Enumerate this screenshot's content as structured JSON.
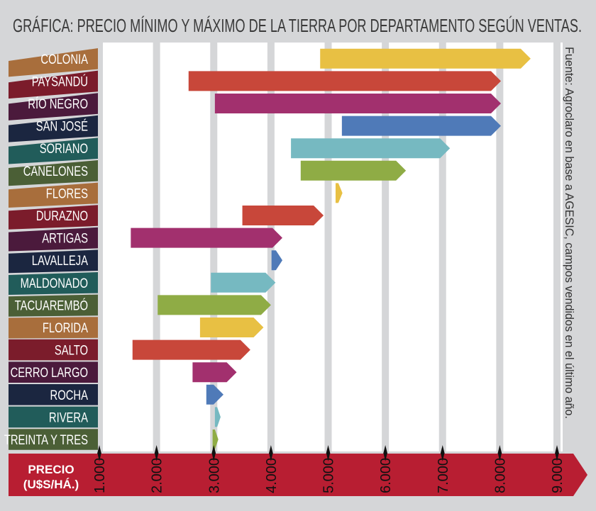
{
  "chart_data": {
    "type": "bar",
    "orientation": "horizontal-floating",
    "title": "GRÁFICA: PRECIO MÍNIMO Y MÁXIMO DE LA TIERRA POR DEPARTAMENTO SEGÚN VENTAS.",
    "source": "Fuente: Agroclaro en base a AGESIC, campos vendidos en el último año.",
    "xlabel_line1": "PRECIO",
    "xlabel_line2": "(U$S/HÁ.)",
    "xlim": [
      1000,
      9000
    ],
    "ticks": [
      "1.000",
      "2.000",
      "3.000",
      "4.000",
      "5.000",
      "6.000",
      "7.000",
      "8.000",
      "9.000"
    ],
    "tick_values": [
      1000,
      2000,
      3000,
      4000,
      5000,
      6000,
      7000,
      8000,
      9000
    ],
    "grid": true,
    "categories": [
      "COLONIA",
      "PAYSANDÚ",
      "RÍO NEGRO",
      "SAN JOSÉ",
      "SORIANO",
      "CANELONES",
      "FLORES",
      "DURAZNO",
      "ARTIGAS",
      "LAVALLEJA",
      "MALDONADO",
      "TACUAREMBÓ",
      "FLORIDA",
      "SALTO",
      "CERRO LARGO",
      "ROCHA",
      "RIVERA",
      "TREINTA Y TRES"
    ],
    "series": [
      {
        "name": "min",
        "values": [
          4860,
          2560,
          3020,
          5240,
          4350,
          4520,
          5130,
          3500,
          1550,
          4010,
          2950,
          2020,
          2760,
          1580,
          2630,
          2870,
          3020,
          2980
        ]
      },
      {
        "name": "max",
        "values": [
          8540,
          8020,
          8020,
          8020,
          7130,
          6360,
          5250,
          4920,
          4200,
          4200,
          4080,
          4000,
          3870,
          3640,
          3400,
          3170,
          3120,
          3080
        ]
      }
    ],
    "bar_colors": [
      "#e8c043",
      "#c8473a",
      "#a2306e",
      "#4f7ab8",
      "#76b9c1",
      "#8fac45"
    ],
    "label_colors": [
      "#a86e3c",
      "#7b1c2b",
      "#4b1a3c",
      "#1b2640",
      "#215c5a",
      "#4b5f36"
    ],
    "axis_color": "#b81e32"
  }
}
